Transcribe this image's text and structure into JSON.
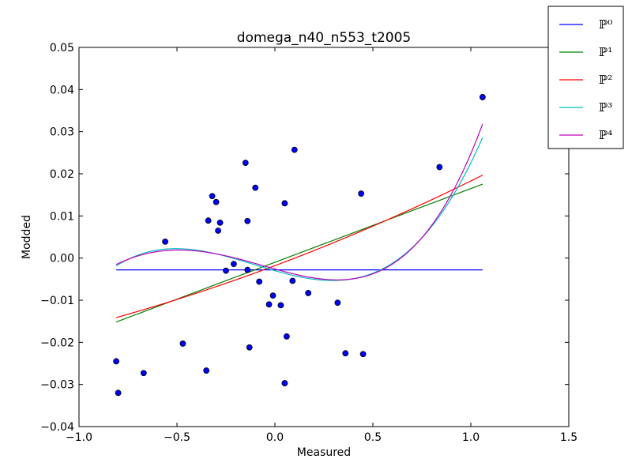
{
  "chart_data": {
    "type": "scatter",
    "title": "domega_n40_n553_t2005",
    "xlabel": "Measured",
    "ylabel": "Modded",
    "xlim": [
      -1.0,
      1.5
    ],
    "ylim": [
      -0.04,
      0.05
    ],
    "xticks": [
      -1.0,
      -0.5,
      0.0,
      0.5,
      1.0,
      1.5
    ],
    "xtick_labels": [
      "−1.0",
      "−0.5",
      "0.0",
      "0.5",
      "1.0",
      "1.5"
    ],
    "yticks": [
      -0.04,
      -0.03,
      -0.02,
      -0.01,
      0.0,
      0.01,
      0.02,
      0.03,
      0.04,
      0.05
    ],
    "ytick_labels": [
      "−0.04",
      "−0.03",
      "−0.02",
      "−0.01",
      "0.00",
      "0.01",
      "0.02",
      "0.03",
      "0.04",
      "0.05"
    ],
    "grid": false,
    "legend_position": "top-right (outside)",
    "points": {
      "color": "#0000ff",
      "x": [
        -0.81,
        -0.8,
        -0.67,
        -0.56,
        -0.47,
        -0.35,
        -0.34,
        -0.32,
        -0.3,
        -0.29,
        -0.28,
        -0.25,
        -0.21,
        -0.15,
        -0.14,
        -0.14,
        -0.13,
        -0.1,
        -0.08,
        -0.03,
        -0.01,
        0.03,
        0.05,
        0.05,
        0.06,
        0.09,
        0.1,
        0.17,
        0.32,
        0.36,
        0.44,
        0.45,
        0.84,
        1.06
      ],
      "y": [
        -0.0245,
        -0.032,
        -0.0273,
        0.0039,
        -0.0203,
        -0.0267,
        0.0089,
        0.0147,
        0.0133,
        0.0065,
        0.0084,
        -0.003,
        -0.0014,
        0.0226,
        -0.0028,
        0.0088,
        -0.0212,
        0.0167,
        -0.0056,
        -0.011,
        -0.0089,
        -0.0112,
        0.013,
        -0.0297,
        -0.0186,
        -0.0054,
        0.0257,
        -0.0083,
        -0.0106,
        -0.0226,
        0.0153,
        -0.0228,
        0.0216,
        0.0382
      ]
    },
    "series": [
      {
        "name": "ℙ⁰",
        "color": "#0000ff",
        "coeffs": [
          -0.0028
        ]
      },
      {
        "name": "ℙ¹",
        "color": "#008000",
        "coeffs": [
          -0.001,
          0.0175
        ]
      },
      {
        "name": "ℙ²",
        "color": "#ff0000",
        "coeffs": [
          -0.0018,
          0.0174,
          0.0027
        ]
      },
      {
        "name": "ℙ³",
        "color": "#00bfbf",
        "coeffs": [
          -0.003,
          -0.0132,
          0.0093,
          0.0295
        ]
      },
      {
        "name": "ℙ⁴",
        "color": "#bf00bf",
        "coeffs": [
          -0.0026,
          -0.0129,
          0.0052,
          0.029,
          0.0061
        ]
      }
    ],
    "series_x_range": [
      -0.81,
      1.06
    ]
  }
}
